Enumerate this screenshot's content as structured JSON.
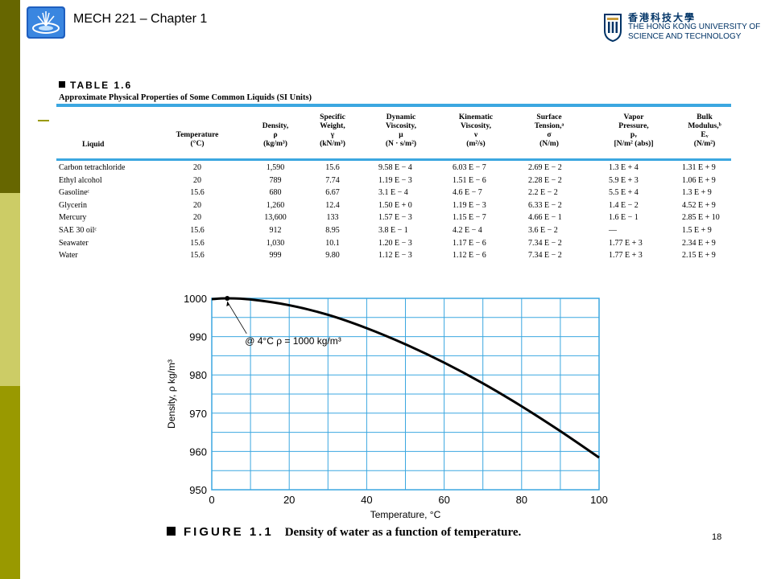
{
  "header": {
    "title": "MECH 221 – Chapter 1",
    "university_logo": {
      "chinese": "香港科技大學",
      "english_line1": "THE HONG KONG UNIVERSITY OF",
      "english_line2": "SCIENCE AND TECHNOLOGY"
    }
  },
  "table": {
    "label": "TABLE 1.6",
    "caption": "Approximate Physical Properties of Some Common Liquids (SI Units)",
    "columns": [
      "Liquid",
      "Temperature\n(°C)",
      "Density,\nρ\n(kg/m³)",
      "Specific\nWeight,\nγ\n(kN/m³)",
      "Dynamic\nViscosity,\nμ\n(N · s/m²)",
      "Kinematic\nViscosity,\nν\n(m²/s)",
      "Surface\nTension,ᵃ\nσ\n(N/m)",
      "Vapor\nPressure,\npᵥ\n[N/m² (abs)]",
      "Bulk\nModulus,ᵇ\nEᵥ\n(N/m²)"
    ],
    "rows": [
      [
        "Carbon tetrachloride",
        "20",
        "1,590",
        "15.6",
        "9.58 E − 4",
        "6.03 E − 7",
        "2.69 E − 2",
        "1.3  E + 4",
        "1.31 E + 9"
      ],
      [
        "Ethyl alcohol",
        "20",
        "789",
        "7.74",
        "1.19 E − 3",
        "1.51 E − 6",
        "2.28 E − 2",
        "5.9  E + 3",
        "1.06 E + 9"
      ],
      [
        "Gasolineᶜ",
        "15.6",
        "680",
        "6.67",
        "3.1  E − 4",
        "4.6  E − 7",
        "2.2  E − 2",
        "5.5  E + 4",
        "1.3  E + 9"
      ],
      [
        "Glycerin",
        "20",
        "1,260",
        "12.4",
        "1.50 E + 0",
        "1.19 E − 3",
        "6.33 E − 2",
        "1.4  E − 2",
        "4.52 E + 9"
      ],
      [
        "Mercury",
        "20",
        "13,600",
        "133",
        "1.57 E − 3",
        "1.15 E − 7",
        "4.66 E − 1",
        "1.6  E − 1",
        "2.85 E + 10"
      ],
      [
        "SAE 30 oilᶜ",
        "15.6",
        "912",
        "8.95",
        "3.8  E − 1",
        "4.2  E − 4",
        "3.6  E − 2",
        "—",
        "1.5  E + 9"
      ],
      [
        "Seawater",
        "15.6",
        "1,030",
        "10.1",
        "1.20 E − 3",
        "1.17 E − 6",
        "7.34 E − 2",
        "1.77 E + 3",
        "2.34 E + 9"
      ],
      [
        "Water",
        "15.6",
        "999",
        "9.80",
        "1.12 E − 3",
        "1.12 E − 6",
        "7.34 E − 2",
        "1.77 E + 3",
        "2.15 E + 9"
      ]
    ]
  },
  "chart_data": {
    "type": "line",
    "title": "",
    "xlabel": "Temperature, °C",
    "ylabel": "Density, ρ kg/m³",
    "xlim": [
      0,
      100
    ],
    "ylim": [
      950,
      1000
    ],
    "xticks": [
      0,
      20,
      40,
      60,
      80,
      100
    ],
    "yticks": [
      950,
      960,
      970,
      980,
      990,
      1000
    ],
    "grid": true,
    "series": [
      {
        "x": [
          0,
          4,
          10,
          20,
          30,
          40,
          50,
          60,
          70,
          80,
          90,
          100
        ],
        "y": [
          999.8,
          1000.0,
          999.7,
          998.2,
          995.7,
          992.2,
          988.0,
          983.2,
          977.8,
          971.8,
          965.3,
          958.4
        ]
      }
    ],
    "annotation": {
      "text": "@ 4°C  ρ = 1000 kg/m³",
      "x": 4,
      "y": 1000
    }
  },
  "figure": {
    "label": "FIGURE 1.1",
    "caption": "Density of water as a function of temperature."
  },
  "footer": {
    "page_number": "18"
  },
  "colors": {
    "sidebar_dark": "#666600",
    "sidebar_light": "#cccc66",
    "sidebar_mid": "#999900",
    "table_rule": "#3ba7e0",
    "chart_grid": "#3ba7e0",
    "logo_blue": "#003366"
  }
}
